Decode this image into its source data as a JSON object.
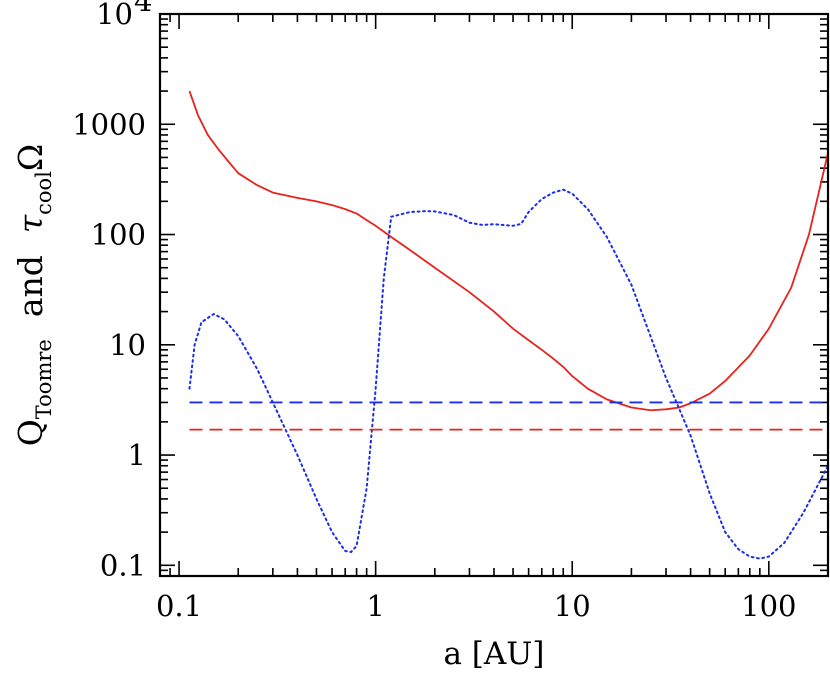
{
  "chart_data": {
    "type": "line",
    "xlabel": "a [AU]",
    "ylabel_parts": {
      "q": "Q",
      "q_sub": "Toomre",
      "and": "and",
      "tau": "τ",
      "tau_sub": "cool",
      "omega": "Ω"
    },
    "x_scale": "log",
    "y_scale": "log",
    "xlim": [
      0.08,
      200
    ],
    "ylim": [
      0.08,
      10000
    ],
    "x_ticks": [
      {
        "value": 0.1,
        "label": "0.1"
      },
      {
        "value": 1,
        "label": "1"
      },
      {
        "value": 10,
        "label": "10"
      },
      {
        "value": 100,
        "label": "100"
      }
    ],
    "y_ticks": [
      {
        "value": 0.1,
        "label": "0.1"
      },
      {
        "value": 1,
        "label": "1"
      },
      {
        "value": 10,
        "label": "10"
      },
      {
        "value": 100,
        "label": "100"
      },
      {
        "value": 1000,
        "label": "1000"
      },
      {
        "value": 10000,
        "label": "10",
        "exp": "4"
      }
    ],
    "series": [
      {
        "style": "solid",
        "color": "#e8221c",
        "points": [
          [
            0.113,
            2000
          ],
          [
            0.125,
            1200
          ],
          [
            0.14,
            800
          ],
          [
            0.16,
            580
          ],
          [
            0.18,
            450
          ],
          [
            0.2,
            360
          ],
          [
            0.25,
            280
          ],
          [
            0.3,
            240
          ],
          [
            0.4,
            215
          ],
          [
            0.5,
            200
          ],
          [
            0.6,
            185
          ],
          [
            0.7,
            170
          ],
          [
            0.8,
            155
          ],
          [
            0.9,
            135
          ],
          [
            1.0,
            120
          ],
          [
            1.2,
            95
          ],
          [
            1.5,
            72
          ],
          [
            2.0,
            50
          ],
          [
            3.0,
            30
          ],
          [
            4.0,
            20
          ],
          [
            5.0,
            14
          ],
          [
            6.0,
            11
          ],
          [
            7.0,
            9
          ],
          [
            8.0,
            7.5
          ],
          [
            9.0,
            6.3
          ],
          [
            10,
            5.2
          ],
          [
            12,
            4
          ],
          [
            15,
            3.2
          ],
          [
            20,
            2.7
          ],
          [
            25,
            2.55
          ],
          [
            30,
            2.6
          ],
          [
            35,
            2.7
          ],
          [
            40,
            2.95
          ],
          [
            50,
            3.6
          ],
          [
            60,
            4.7
          ],
          [
            80,
            8
          ],
          [
            100,
            14
          ],
          [
            130,
            33
          ],
          [
            160,
            100
          ],
          [
            200,
            550
          ]
        ]
      },
      {
        "style": "dotted",
        "color": "#1c2ee8",
        "points": [
          [
            0.113,
            4
          ],
          [
            0.12,
            10
          ],
          [
            0.13,
            16
          ],
          [
            0.15,
            19
          ],
          [
            0.17,
            17
          ],
          [
            0.2,
            12
          ],
          [
            0.25,
            6
          ],
          [
            0.3,
            3
          ],
          [
            0.4,
            1
          ],
          [
            0.5,
            0.4
          ],
          [
            0.6,
            0.2
          ],
          [
            0.7,
            0.135
          ],
          [
            0.75,
            0.132
          ],
          [
            0.8,
            0.15
          ],
          [
            0.9,
            0.5
          ],
          [
            1.0,
            4
          ],
          [
            1.1,
            40
          ],
          [
            1.2,
            145
          ],
          [
            1.5,
            160
          ],
          [
            1.8,
            163
          ],
          [
            2.0,
            162
          ],
          [
            2.5,
            150
          ],
          [
            3.0,
            128
          ],
          [
            3.5,
            122
          ],
          [
            4.0,
            124
          ],
          [
            5.0,
            120
          ],
          [
            5.5,
            125
          ],
          [
            6.0,
            160
          ],
          [
            7.0,
            210
          ],
          [
            8.0,
            240
          ],
          [
            9.0,
            255
          ],
          [
            10,
            235
          ],
          [
            12,
            170
          ],
          [
            15,
            95
          ],
          [
            20,
            35
          ],
          [
            25,
            12
          ],
          [
            30,
            5
          ],
          [
            40,
            1.5
          ],
          [
            50,
            0.45
          ],
          [
            60,
            0.2
          ],
          [
            70,
            0.14
          ],
          [
            80,
            0.12
          ],
          [
            90,
            0.115
          ],
          [
            100,
            0.12
          ],
          [
            120,
            0.16
          ],
          [
            150,
            0.3
          ],
          [
            200,
            0.8
          ]
        ]
      },
      {
        "style": "dashed",
        "color": "#1c2ee8",
        "points": [
          [
            0.113,
            3.0
          ],
          [
            200,
            3.0
          ]
        ]
      },
      {
        "style": "dashed",
        "color": "#e8221c",
        "points": [
          [
            0.113,
            1.7
          ],
          [
            200,
            1.7
          ]
        ]
      }
    ]
  }
}
